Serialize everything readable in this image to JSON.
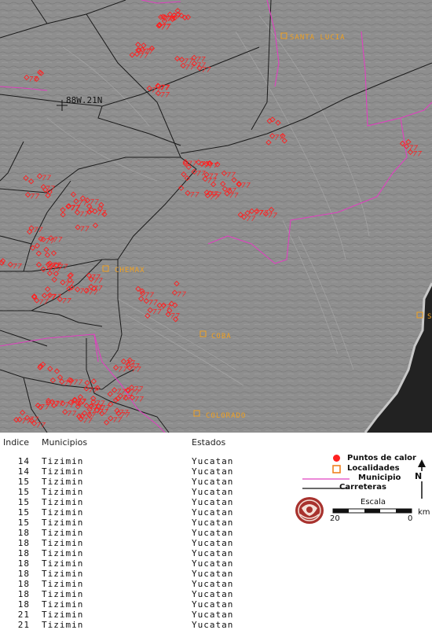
{
  "map": {
    "coordinate_label": "88W.21N",
    "localities": [
      {
        "name": "SANTA LUCIA"
      },
      {
        "name": "CHEMAX"
      },
      {
        "name": "COBA"
      },
      {
        "name": "COLORADO"
      },
      {
        "name": "S"
      }
    ],
    "colors": {
      "terrain": "#8c8c8c",
      "sea": "#2a2a2a",
      "roads": "#1a1a1a",
      "municipio": "#e040c0",
      "hotspots": "#ff2020",
      "localities": "#f0a020"
    }
  },
  "table": {
    "headers": {
      "indice": "Indice",
      "municipios": "Municipios",
      "estados": "Estados"
    },
    "rows": [
      {
        "indice": "14",
        "municipio": "Tizimin",
        "estado": "Yucatan"
      },
      {
        "indice": "14",
        "municipio": "Tizimin",
        "estado": "Yucatan"
      },
      {
        "indice": "15",
        "municipio": "Tizimin",
        "estado": "Yucatan"
      },
      {
        "indice": "15",
        "municipio": "Tizimin",
        "estado": "Yucatan"
      },
      {
        "indice": "15",
        "municipio": "Tizimin",
        "estado": "Yucatan"
      },
      {
        "indice": "15",
        "municipio": "Tizimin",
        "estado": "Yucatan"
      },
      {
        "indice": "15",
        "municipio": "Tizimin",
        "estado": "Yucatan"
      },
      {
        "indice": "18",
        "municipio": "Tizimin",
        "estado": "Yucatan"
      },
      {
        "indice": "18",
        "municipio": "Tizimin",
        "estado": "Yucatan"
      },
      {
        "indice": "18",
        "municipio": "Tizimin",
        "estado": "Yucatan"
      },
      {
        "indice": "18",
        "municipio": "Tizimin",
        "estado": "Yucatan"
      },
      {
        "indice": "18",
        "municipio": "Tizimin",
        "estado": "Yucatan"
      },
      {
        "indice": "18",
        "municipio": "Tizimin",
        "estado": "Yucatan"
      },
      {
        "indice": "18",
        "municipio": "Tizimin",
        "estado": "Yucatan"
      },
      {
        "indice": "18",
        "municipio": "Tizimin",
        "estado": "Yucatan"
      },
      {
        "indice": "21",
        "municipio": "Tizimin",
        "estado": "Yucatan"
      },
      {
        "indice": "21",
        "municipio": "Tizimin",
        "estado": "Yucatan"
      }
    ]
  },
  "legend": {
    "puntos_de_calor": "Puntos de calor",
    "localidades": "Localidades",
    "municipio": "Municipio",
    "carreteras": "Carreteras",
    "escala": "Escala",
    "scale_left": "20",
    "scale_right": "0",
    "scale_unit": "km",
    "north": "N"
  }
}
